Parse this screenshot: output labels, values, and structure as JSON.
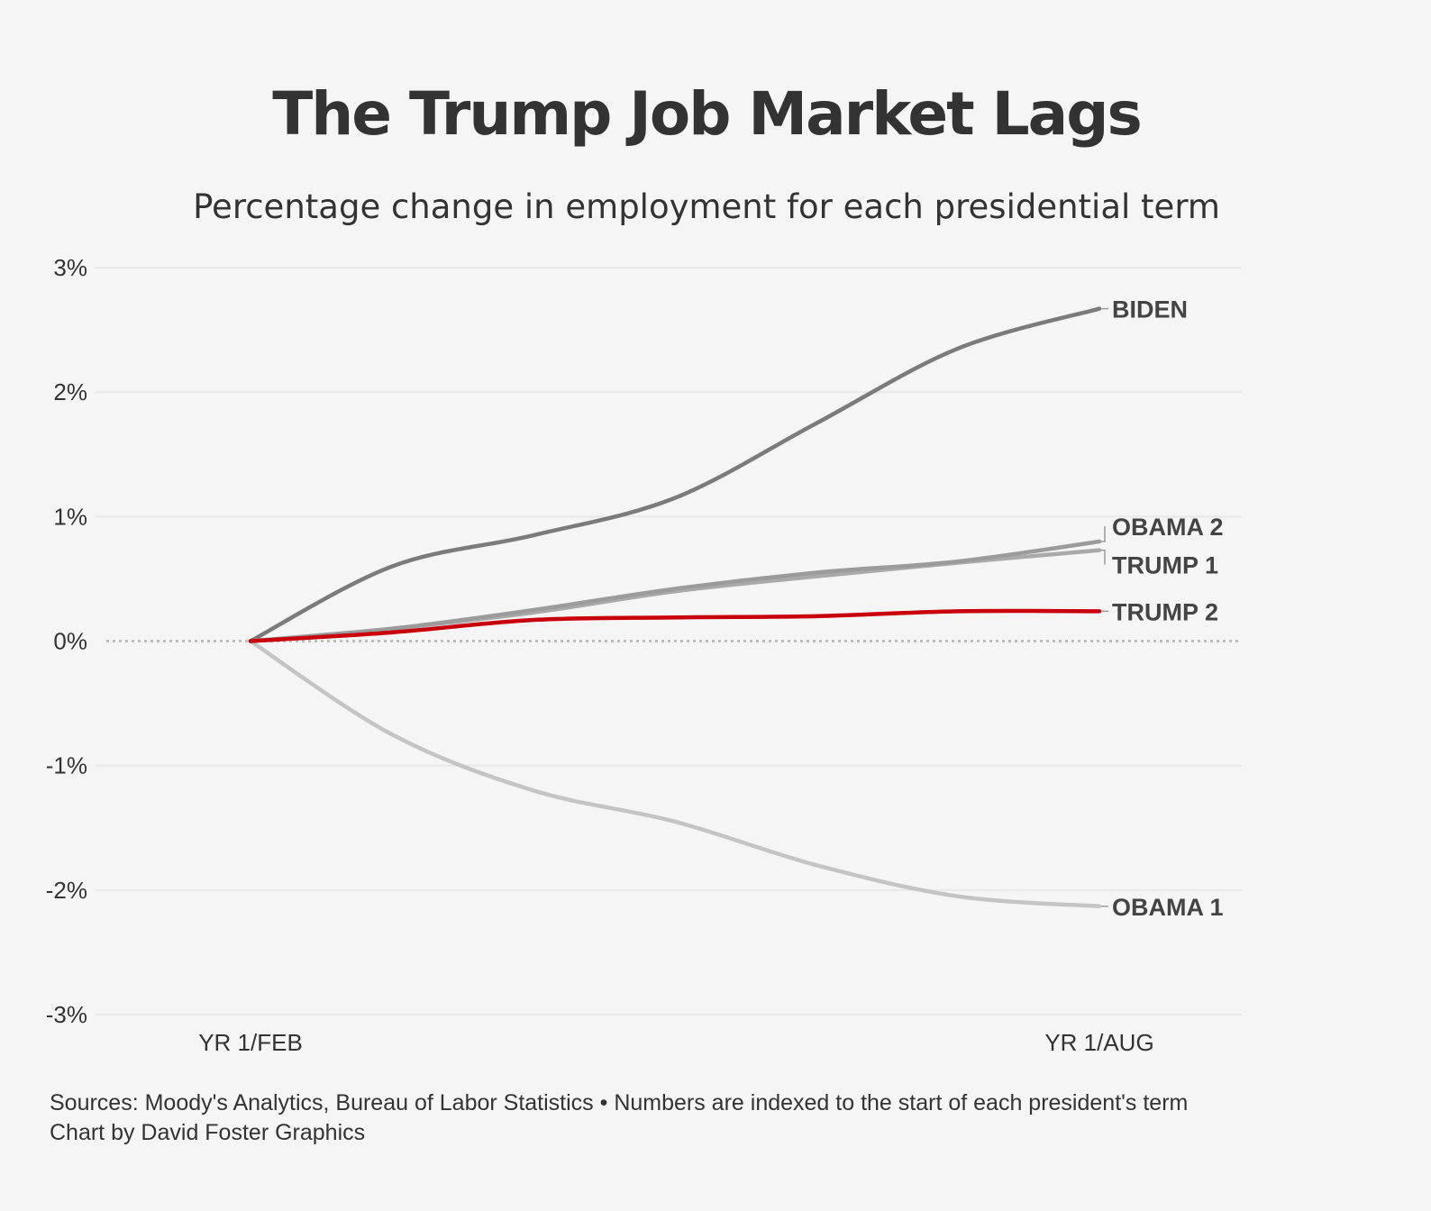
{
  "title": "The Trump Job Market Lags",
  "subtitle": "Percentage change in employment for each presidential term",
  "footer": {
    "sources": "Sources: Moody's Analytics, Bureau of Labor Statistics • Numbers are indexed to the start of each president's term",
    "credit": "Chart by David Foster Graphics"
  },
  "chart_data": {
    "type": "line",
    "x": [
      "YR 1/FEB",
      "",
      "",
      "",
      "",
      "",
      "YR 1/AUG"
    ],
    "x_tick_labels": [
      "YR 1/FEB",
      "YR 1/AUG"
    ],
    "y_tick_labels": [
      "3%",
      "2%",
      "1%",
      "0%",
      "-1%",
      "-2%",
      "-3%"
    ],
    "ylim": [
      -3,
      3
    ],
    "y_ticks": [
      3,
      2,
      1,
      0,
      -1,
      -2,
      -3
    ],
    "grid": true,
    "zero_line": "dotted",
    "legend": "direct labels at line ends",
    "series": [
      {
        "name": "BIDEN",
        "color": "#7b7b7b",
        "values": [
          0,
          0.6,
          0.85,
          1.15,
          1.75,
          2.35,
          2.67
        ]
      },
      {
        "name": "OBAMA 2",
        "color": "#9b9b9b",
        "values": [
          0,
          0.1,
          0.25,
          0.42,
          0.55,
          0.64,
          0.8
        ]
      },
      {
        "name": "TRUMP 1",
        "color": "#a9a9a9",
        "values": [
          0,
          0.1,
          0.23,
          0.4,
          0.52,
          0.63,
          0.73
        ]
      },
      {
        "name": "TRUMP 2",
        "color": "#c8000a",
        "values": [
          0,
          0.07,
          0.17,
          0.19,
          0.2,
          0.24,
          0.24
        ]
      },
      {
        "name": "OBAMA 1",
        "color": "#c4c4c4",
        "values": [
          0,
          -0.75,
          -1.2,
          -1.45,
          -1.8,
          -2.05,
          -2.13
        ]
      }
    ]
  }
}
